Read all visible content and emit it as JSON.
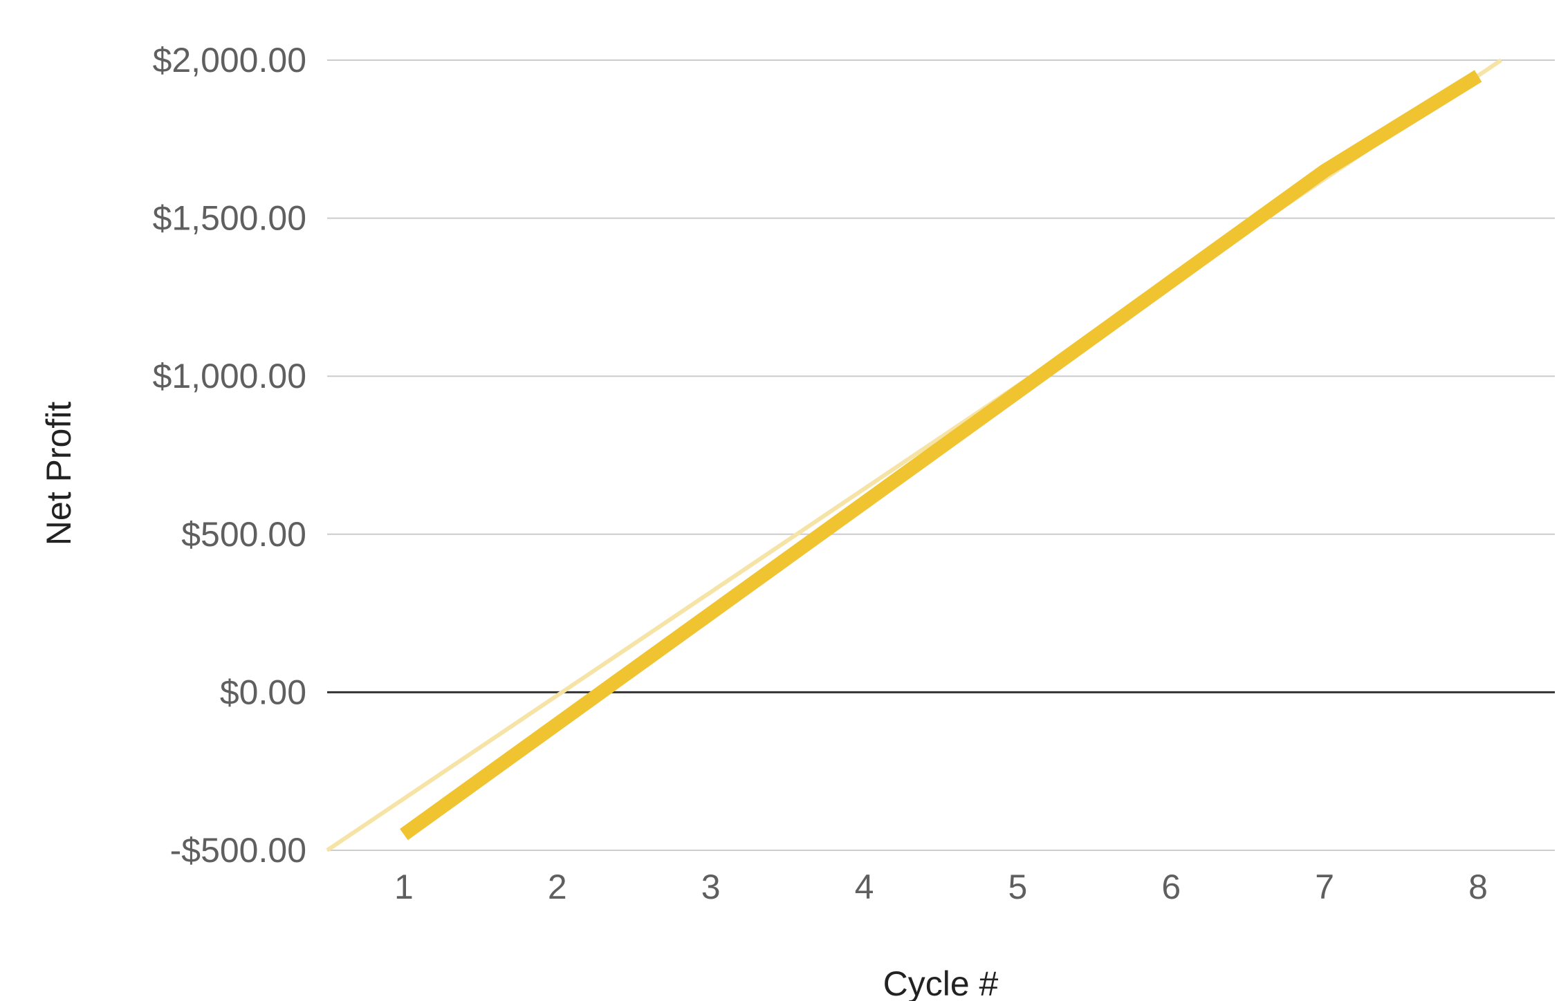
{
  "chart_data": {
    "type": "line",
    "title": "",
    "xlabel": "Cycle #",
    "ylabel": "Net Profit",
    "categories": [
      "1",
      "2",
      "3",
      "4",
      "5",
      "6",
      "7",
      "8"
    ],
    "x": [
      1,
      2,
      3,
      4,
      5,
      6,
      7,
      8
    ],
    "xlim": [
      0.5,
      8.5
    ],
    "ylim": [
      -500,
      2000
    ],
    "y_ticks": [
      2000,
      1500,
      1000,
      500,
      0,
      -500
    ],
    "y_tick_labels": [
      "$2,000.00",
      "$1,500.00",
      "$1,000.00",
      "$500.00",
      "$0.00",
      "-$500.00"
    ],
    "series": [
      {
        "values": [
          -450,
          -100,
          250,
          600,
          950,
          1300,
          1650,
          1950
        ],
        "color": "#f0c330"
      }
    ],
    "trendline": {
      "color": "#f6e3a6",
      "from": [
        0.5,
        -500
      ],
      "to": [
        8.15,
        2000
      ]
    },
    "grid": true,
    "gridline_color": "#cccccc",
    "zero_line_color": "#333333",
    "title_color": "#1f4e8c",
    "legend": "none"
  }
}
